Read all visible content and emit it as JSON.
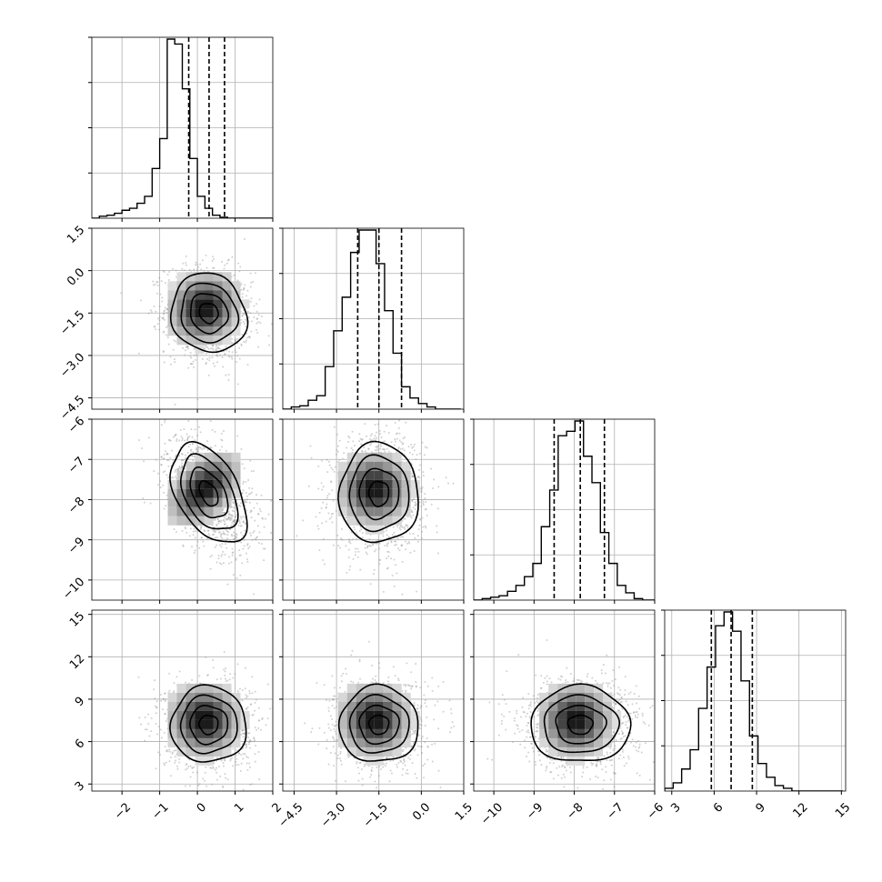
{
  "chart_data": {
    "type": "corner",
    "dimensions": 4,
    "params": [
      {
        "range": [
          -2.8,
          2.0
        ],
        "ticks": [
          -2,
          -1,
          0,
          1,
          2
        ],
        "tick_labels": [
          "−2",
          "−1",
          "0",
          "1",
          "2"
        ]
      },
      {
        "range": [
          -4.9,
          1.5
        ],
        "ticks": [
          -4.5,
          -3.0,
          -1.5,
          0.0,
          1.5
        ],
        "tick_labels": [
          "−4.5",
          "−3.0",
          "−1.5",
          "0.0",
          "1.5"
        ]
      },
      {
        "range": [
          -10.5,
          -6.0
        ],
        "ticks": [
          -10,
          -9,
          -8,
          -7,
          -6
        ],
        "tick_labels": [
          "−10",
          "−9",
          "−8",
          "−7",
          "−6"
        ]
      },
      {
        "range": [
          2.5,
          15.3
        ],
        "ticks": [
          3,
          6,
          9,
          12,
          15
        ],
        "tick_labels": [
          "3",
          "6",
          "9",
          "12",
          "15"
        ]
      }
    ],
    "histograms": [
      {
        "edges_start": -2.8,
        "bin_width": 0.2,
        "counts": [
          0,
          2,
          3,
          5,
          8,
          10,
          15,
          22,
          50,
          80,
          180,
          175,
          130,
          60,
          22,
          10,
          3,
          1,
          0,
          0,
          0,
          0,
          0,
          0
        ],
        "quantiles": [
          -0.23,
          0.31,
          0.72
        ]
      },
      {
        "edges_start": -4.9,
        "bin_width": 0.3,
        "counts": [
          0,
          2,
          3,
          8,
          12,
          38,
          70,
          100,
          140,
          160,
          160,
          130,
          88,
          50,
          20,
          10,
          5,
          2,
          0,
          0,
          0
        ],
        "quantiles": [
          -2.25,
          -1.5,
          -0.7
        ]
      },
      {
        "edges_start": -10.5,
        "bin_width": 0.21,
        "counts": [
          0,
          1,
          2,
          3,
          6,
          10,
          16,
          25,
          50,
          75,
          112,
          115,
          122,
          98,
          80,
          46,
          25,
          10,
          5,
          1,
          0,
          0
        ],
        "quantiles": [
          -8.5,
          -7.85,
          -7.25
        ]
      },
      {
        "edges_start": 2.5,
        "bin_width": 0.6,
        "counts": [
          1,
          3,
          8,
          15,
          30,
          45,
          60,
          65,
          58,
          40,
          20,
          10,
          5,
          2,
          1,
          0,
          0,
          0,
          0,
          0,
          0
        ],
        "quantiles": [
          5.8,
          7.2,
          8.7
        ]
      }
    ],
    "means": [
      0.3,
      -1.5,
      -7.85,
      7.2
    ],
    "stds": [
      0.5,
      0.7,
      0.62,
      1.35
    ],
    "correlations": [
      [
        1.0,
        -0.1,
        -0.45,
        0.0
      ],
      [
        -0.1,
        1.0,
        0.0,
        0.0
      ],
      [
        -0.45,
        0.0,
        1.0,
        0.0
      ],
      [
        0.0,
        0.0,
        0.0,
        1.0
      ]
    ],
    "grid": true,
    "colors": {
      "line": "#000000",
      "points": "#9a9a9a",
      "grid": "#b0b0b0"
    }
  }
}
